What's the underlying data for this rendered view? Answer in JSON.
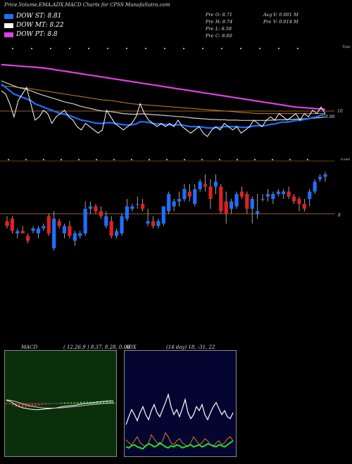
{
  "header": {
    "title": "Price,Volume,EMA,ADX,MACD Charts for CPSS MunafaSutra.com"
  },
  "legend": [
    {
      "label": "DOW ST: 8.81",
      "color": "#1e6fff"
    },
    {
      "label": "DOW MT: 8.22",
      "color": "#ffffff"
    },
    {
      "label": "DOW PT: 8.8",
      "color": "#e040e0"
    }
  ],
  "info": {
    "open": {
      "k": "Pre",
      "v": "O: 8.71"
    },
    "high": {
      "k": "Pre",
      "v": "H: 8.74"
    },
    "low": {
      "k": "Pre",
      "v": "L: 8.58"
    },
    "close": {
      "k": "Pre",
      "v": "C: 8.60"
    },
    "avg_vol": {
      "k": "Avg",
      "v": "V: 0.001 M"
    },
    "pre_vol": {
      "k": "Pre",
      "v": "V: 0.014 M"
    }
  },
  "ema_panel": {
    "tops_label": "Tops",
    "level_label": "10",
    "price_label": "9.98"
  },
  "candle_panel": {
    "lows_label": "Lows",
    "level_label": "8"
  },
  "macd_panel": {
    "label": "MACD",
    "params": "( 12,26,9 ) 8.37,  8.28,  0.09"
  },
  "adx_panel": {
    "label": "ADX",
    "params": "(14  day) 18,  -31,  22"
  },
  "chart_data": [
    {
      "type": "line",
      "name": "EMA panel",
      "annotations": [
        "Tops",
        "10",
        "9.98"
      ],
      "series": [
        {
          "name": "close",
          "color": "#ffffff",
          "values": [
            10.7,
            10.6,
            10.3,
            9.9,
            10.4,
            10.6,
            10.8,
            10.3,
            9.8,
            9.9,
            10.1,
            10.0,
            9.7,
            9.9,
            10.0,
            10.1,
            9.9,
            9.8,
            9.6,
            9.5,
            9.7,
            9.6,
            9.5,
            9.4,
            9.5,
            10.1,
            9.9,
            9.7,
            9.6,
            9.5,
            9.6,
            9.7,
            9.9,
            10.3,
            10.0,
            9.8,
            9.7,
            9.6,
            9.7,
            9.6,
            9.7,
            9.6,
            9.8,
            9.6,
            9.5,
            9.4,
            9.5,
            9.6,
            9.4,
            9.3,
            9.5,
            9.6,
            9.5,
            9.7,
            9.6,
            9.5,
            9.6,
            9.4,
            9.5,
            9.6,
            9.8,
            9.7,
            9.6,
            9.8,
            9.9,
            9.8,
            10.0,
            9.9,
            9.8,
            9.9,
            10.0,
            9.8,
            10.0,
            9.9,
            10.1,
            10.0,
            10.2,
            10.0
          ]
        },
        {
          "name": "ema-blue",
          "color": "#1e6fff",
          "values": [
            10.9,
            10.8,
            10.7,
            10.6,
            10.55,
            10.5,
            10.45,
            10.4,
            10.3,
            10.25,
            10.2,
            10.15,
            10.1,
            10.05,
            10.0,
            9.98,
            9.95,
            9.9,
            9.85,
            9.8,
            9.78,
            9.75,
            9.72,
            9.7,
            9.7,
            9.72,
            9.72,
            9.7,
            9.68,
            9.66,
            9.65,
            9.66,
            9.68,
            9.75,
            9.75,
            9.73,
            9.7,
            9.68,
            9.68,
            9.66,
            9.66,
            9.65,
            9.66,
            9.65,
            9.62,
            9.6,
            9.6,
            9.6,
            9.58,
            9.56,
            9.56,
            9.57,
            9.57,
            9.6,
            9.6,
            9.6,
            9.6,
            9.58,
            9.58,
            9.59,
            9.62,
            9.63,
            9.62,
            9.64,
            9.67,
            9.68,
            9.72,
            9.74,
            9.74,
            9.76,
            9.79,
            9.79,
            9.82,
            9.84,
            9.88,
            9.9,
            9.95,
            9.98
          ]
        },
        {
          "name": "ema-gray",
          "color": "#cccccc",
          "values": [
            11.0,
            10.95,
            10.9,
            10.85,
            10.8,
            10.77,
            10.74,
            10.7,
            10.65,
            10.6,
            10.56,
            10.52,
            10.48,
            10.44,
            10.4,
            10.36,
            10.33,
            10.3,
            10.26,
            10.22,
            10.19,
            10.16,
            10.13,
            10.1,
            10.08,
            10.07,
            10.06,
            10.04,
            10.02,
            10.0,
            9.99,
            9.98,
            9.98,
            9.99,
            9.99,
            9.98,
            9.97,
            9.96,
            9.95,
            9.94,
            9.93,
            9.92,
            9.91,
            9.9,
            9.89,
            9.87,
            9.86,
            9.85,
            9.84,
            9.83,
            9.82,
            9.82,
            9.81,
            9.81,
            9.8,
            9.8,
            9.8,
            9.79,
            9.79,
            9.79,
            9.79,
            9.79,
            9.79,
            9.79,
            9.8,
            9.8,
            9.81,
            9.81,
            9.82,
            9.82,
            9.83,
            9.83,
            9.84,
            9.85,
            9.86,
            9.87,
            9.88,
            9.9
          ]
        },
        {
          "name": "ema-orange",
          "color": "#c8802c",
          "values": [
            10.85,
            10.84,
            10.83,
            10.82,
            10.8,
            10.79,
            10.78,
            10.76,
            10.74,
            10.72,
            10.7,
            10.68,
            10.66,
            10.64,
            10.62,
            10.6,
            10.58,
            10.56,
            10.54,
            10.52,
            10.5,
            10.48,
            10.46,
            10.44,
            10.42,
            10.41,
            10.4,
            10.38,
            10.36,
            10.34,
            10.32,
            10.3,
            10.29,
            10.28,
            10.27,
            10.26,
            10.25,
            10.24,
            10.23,
            10.22,
            10.21,
            10.2,
            10.19,
            10.18,
            10.17,
            10.16,
            10.15,
            10.14,
            10.13,
            10.12,
            10.11,
            10.1,
            10.09,
            10.08,
            10.07,
            10.06,
            10.05,
            10.04,
            10.03,
            10.02,
            10.01,
            10.0,
            10.0,
            10.0,
            10.0,
            10.0,
            10.0,
            10.0,
            10.0,
            10.0,
            10.0,
            10.0,
            10.0,
            10.0,
            10.0,
            10.0,
            10.0,
            10.0
          ]
        },
        {
          "name": "ema-magenta",
          "color": "#e040e0",
          "values": [
            11.5,
            11.49,
            11.48,
            11.47,
            11.46,
            11.45,
            11.44,
            11.43,
            11.42,
            11.41,
            11.4,
            11.38,
            11.36,
            11.34,
            11.32,
            11.3,
            11.28,
            11.26,
            11.24,
            11.22,
            11.2,
            11.18,
            11.16,
            11.14,
            11.12,
            11.1,
            11.08,
            11.06,
            11.04,
            11.02,
            11.0,
            10.98,
            10.96,
            10.94,
            10.92,
            10.9,
            10.88,
            10.86,
            10.84,
            10.82,
            10.8,
            10.78,
            10.76,
            10.74,
            10.72,
            10.7,
            10.68,
            10.66,
            10.64,
            10.62,
            10.6,
            10.58,
            10.56,
            10.54,
            10.52,
            10.5,
            10.48,
            10.46,
            10.44,
            10.42,
            10.4,
            10.38,
            10.36,
            10.34,
            10.32,
            10.3,
            10.28,
            10.26,
            10.24,
            10.22,
            10.2,
            10.19,
            10.18,
            10.17,
            10.16,
            10.15,
            10.14,
            10.13
          ]
        }
      ],
      "ylim": [
        9.0,
        11.8
      ]
    },
    {
      "type": "candlestick",
      "name": "Price panel",
      "annotations": [
        "Lows",
        "8"
      ],
      "ohlc": [
        [
          7.7,
          7.9,
          7.4,
          7.5
        ],
        [
          7.8,
          7.9,
          7.2,
          7.3
        ],
        [
          7.2,
          7.4,
          7.0,
          7.3
        ],
        [
          7.3,
          7.5,
          7.2,
          7.2
        ],
        [
          7.1,
          7.2,
          6.8,
          6.9
        ],
        [
          7.3,
          7.5,
          7.2,
          7.4
        ],
        [
          7.2,
          7.5,
          7.0,
          7.4
        ],
        [
          7.4,
          7.6,
          7.3,
          7.5
        ],
        [
          7.9,
          8.0,
          7.1,
          7.2
        ],
        [
          6.6,
          8.1,
          6.5,
          7.8
        ],
        [
          7.7,
          7.8,
          7.4,
          7.5
        ],
        [
          7.2,
          7.6,
          7.0,
          7.5
        ],
        [
          7.5,
          7.7,
          7.0,
          7.1
        ],
        [
          6.9,
          7.3,
          6.7,
          7.2
        ],
        [
          7.1,
          7.3,
          7.0,
          7.2
        ],
        [
          7.2,
          8.5,
          7.1,
          8.2
        ],
        [
          8.2,
          8.5,
          8.0,
          8.3
        ],
        [
          8.3,
          8.4,
          8.0,
          8.1
        ],
        [
          8.1,
          8.3,
          7.8,
          7.9
        ],
        [
          7.5,
          8.1,
          7.4,
          7.9
        ],
        [
          7.7,
          7.9,
          7.0,
          7.1
        ],
        [
          7.1,
          7.4,
          7.0,
          7.3
        ],
        [
          7.2,
          8.0,
          7.1,
          7.9
        ],
        [
          7.8,
          8.6,
          7.7,
          8.3
        ],
        [
          8.2,
          8.4,
          8.1,
          8.3
        ],
        [
          8.4,
          8.7,
          8.2,
          8.4
        ],
        [
          8.4,
          8.6,
          8.1,
          8.2
        ],
        [
          7.6,
          8.2,
          7.5,
          7.7
        ],
        [
          7.7,
          7.9,
          7.4,
          7.5
        ],
        [
          7.5,
          7.8,
          7.4,
          7.7
        ],
        [
          7.6,
          8.3,
          7.5,
          8.3
        ],
        [
          8.1,
          8.9,
          8.0,
          8.8
        ],
        [
          8.3,
          8.6,
          8.1,
          8.5
        ],
        [
          8.5,
          8.9,
          8.3,
          8.6
        ],
        [
          8.6,
          9.2,
          8.5,
          9.0
        ],
        [
          8.9,
          9.2,
          8.5,
          8.7
        ],
        [
          8.4,
          9.2,
          8.3,
          9.0
        ],
        [
          9.0,
          9.4,
          8.9,
          9.3
        ],
        [
          9.2,
          9.6,
          8.9,
          9.1
        ],
        [
          9.1,
          9.4,
          8.2,
          8.6
        ],
        [
          9.1,
          9.6,
          8.8,
          9.3
        ],
        [
          9.1,
          9.2,
          8.0,
          8.1
        ],
        [
          8.5,
          8.9,
          7.6,
          8.0
        ],
        [
          8.2,
          8.6,
          8.0,
          8.5
        ],
        [
          8.3,
          8.9,
          8.2,
          8.8
        ],
        [
          8.9,
          9.1,
          8.6,
          8.7
        ],
        [
          8.8,
          8.9,
          8.0,
          8.2
        ],
        [
          8.2,
          8.7,
          7.6,
          8.6
        ],
        [
          8.0,
          8.8,
          7.8,
          8.1
        ],
        [
          8.6,
          8.8,
          8.5,
          8.6
        ],
        [
          8.7,
          9.0,
          8.5,
          8.8
        ],
        [
          8.6,
          8.9,
          8.4,
          8.8
        ],
        [
          8.8,
          9.0,
          8.7,
          8.9
        ],
        [
          8.8,
          9.0,
          8.6,
          8.9
        ],
        [
          8.9,
          9.1,
          8.6,
          8.7
        ],
        [
          8.7,
          8.8,
          8.4,
          8.5
        ],
        [
          8.6,
          8.7,
          8.1,
          8.4
        ],
        [
          8.4,
          8.6,
          8.1,
          8.2
        ],
        [
          8.6,
          9.0,
          8.3,
          8.9
        ],
        [
          8.9,
          9.4,
          8.8,
          9.3
        ],
        [
          9.4,
          9.6,
          9.3,
          9.5
        ],
        [
          9.5,
          9.7,
          9.3,
          9.6
        ]
      ],
      "ylim": [
        6.0,
        10.0
      ]
    },
    {
      "type": "line",
      "name": "MACD panel",
      "title": "MACD",
      "annotations": [
        "( 12,26,9 ) 8.37,  8.28,  0.09"
      ],
      "series": [
        {
          "name": "macd",
          "color": "#ffffff",
          "values": [
            0.1,
            0.08,
            0.02,
            -0.05,
            -0.1,
            -0.14,
            -0.16,
            -0.18,
            -0.19,
            -0.2,
            -0.2,
            -0.19,
            -0.18,
            -0.17,
            -0.16,
            -0.15,
            -0.13,
            -0.11,
            -0.09,
            -0.08,
            -0.07,
            -0.06,
            -0.04,
            -0.02,
            0.0,
            0.01,
            0.02,
            0.03,
            0.05,
            0.06,
            0.07,
            0.08,
            0.09,
            0.09
          ]
        },
        {
          "name": "signal",
          "color": "#cccccc",
          "values": [
            0.12,
            0.11,
            0.09,
            0.06,
            0.03,
            -0.01,
            -0.04,
            -0.07,
            -0.09,
            -0.11,
            -0.13,
            -0.14,
            -0.15,
            -0.15,
            -0.15,
            -0.15,
            -0.14,
            -0.14,
            -0.13,
            -0.12,
            -0.11,
            -0.1,
            -0.09,
            -0.08,
            -0.06,
            -0.05,
            -0.04,
            -0.03,
            -0.02,
            -0.01,
            0.0,
            0.01,
            0.02,
            0.03
          ]
        },
        {
          "name": "histogram",
          "color": "#e03030",
          "values": [
            -0.02,
            -0.03,
            -0.07,
            -0.11,
            -0.13,
            -0.13,
            -0.12,
            -0.11,
            -0.1,
            -0.09,
            -0.07,
            -0.05,
            -0.03,
            -0.02,
            -0.01,
            0.0,
            0.01,
            0.03,
            0.04,
            0.04,
            0.04,
            0.04,
            0.05,
            0.06,
            0.06,
            0.06,
            0.06,
            0.06,
            0.07,
            0.07,
            0.07,
            0.07,
            0.07,
            0.06
          ]
        }
      ],
      "ylim": [
        -1.5,
        1.5
      ]
    },
    {
      "type": "line",
      "name": "ADX panel",
      "title": "ADX",
      "annotations": [
        "(14  day) 18,  -31,  22"
      ],
      "series": [
        {
          "name": "di-plus-white",
          "color": "#ffffff",
          "values": [
            30,
            38,
            45,
            40,
            34,
            42,
            48,
            40,
            35,
            44,
            50,
            42,
            38,
            45,
            52,
            60,
            48,
            40,
            45,
            38,
            46,
            55,
            42,
            36,
            40,
            48,
            44,
            50,
            40,
            35,
            42,
            48,
            52,
            46,
            40,
            44,
            38,
            36,
            42
          ]
        },
        {
          "name": "di-minus-orange",
          "color": "#e07a1a",
          "values": [
            15,
            12,
            10,
            14,
            18,
            12,
            10,
            8,
            12,
            20,
            16,
            12,
            10,
            14,
            22,
            18,
            12,
            10,
            14,
            16,
            12,
            10,
            8,
            12,
            18,
            14,
            10,
            12,
            16,
            14,
            10,
            8,
            12,
            14,
            10,
            12,
            16,
            18,
            14
          ]
        },
        {
          "name": "adx-green",
          "color": "#22e022",
          "values": [
            8,
            7,
            9,
            10,
            8,
            7,
            6,
            9,
            11,
            10,
            8,
            9,
            12,
            10,
            8,
            7,
            9,
            8,
            10,
            9,
            7,
            8,
            9,
            10,
            8,
            9,
            10,
            8,
            9,
            11,
            10,
            9,
            8,
            10,
            9,
            8,
            10,
            12,
            14
          ]
        }
      ],
      "ylim": [
        0,
        100
      ]
    }
  ]
}
